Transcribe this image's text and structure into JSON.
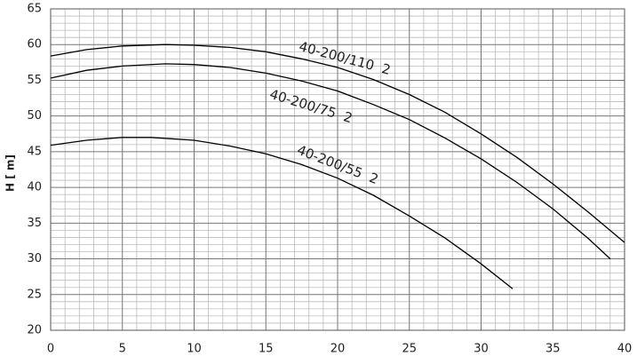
{
  "chart_data": {
    "type": "line",
    "y_label": "H [ m]",
    "xlim": [
      0,
      40
    ],
    "xticks": [
      0,
      5,
      10,
      15,
      20,
      25,
      30,
      35,
      40
    ],
    "ylim": [
      20,
      65
    ],
    "yticks": [
      20,
      25,
      30,
      35,
      40,
      45,
      50,
      55,
      60,
      65
    ],
    "grid": true,
    "minor_grid_divisions": 5,
    "series": [
      {
        "name": "40-200/110  2",
        "color": "#000000",
        "x": [
          0,
          2.5,
          5,
          8,
          10,
          12.5,
          15,
          17.5,
          20,
          22.5,
          25,
          27.5,
          30,
          32.5,
          35,
          37.5,
          40
        ],
        "values": [
          58.4,
          59.3,
          59.8,
          60,
          59.9,
          59.6,
          59,
          58,
          56.8,
          55.1,
          53,
          50.5,
          47.5,
          44.2,
          40.5,
          36.5,
          32.3
        ]
      },
      {
        "name": "40-200/75  2",
        "color": "#000000",
        "x": [
          0,
          2.5,
          5,
          8,
          10,
          12.5,
          15,
          17.5,
          20,
          22.5,
          25,
          27.5,
          30,
          32.5,
          35,
          37.5,
          39
        ],
        "values": [
          55.3,
          56.4,
          57,
          57.3,
          57.2,
          56.8,
          56,
          54.9,
          53.5,
          51.6,
          49.5,
          46.9,
          44,
          40.7,
          37,
          32.8,
          30
        ]
      },
      {
        "name": "40-200/55  2",
        "color": "#000000",
        "x": [
          0,
          2.5,
          5,
          7,
          10,
          12.5,
          15,
          17.5,
          20,
          22.5,
          25,
          27.5,
          30,
          32.2
        ],
        "values": [
          45.9,
          46.6,
          47,
          47,
          46.6,
          45.8,
          44.7,
          43.2,
          41.3,
          38.9,
          36,
          32.9,
          29.3,
          25.8
        ]
      }
    ]
  }
}
